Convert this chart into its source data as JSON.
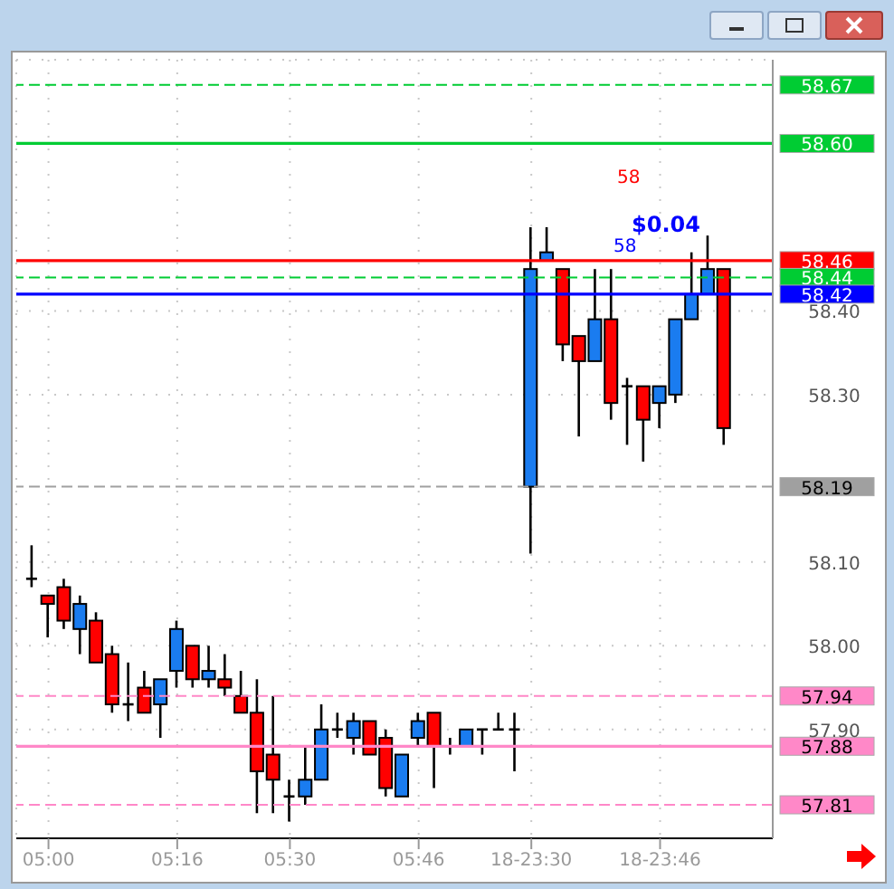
{
  "chart_data": {
    "type": "candlestick",
    "categories": [
      null,
      "05:00",
      null,
      null,
      null,
      null,
      null,
      null,
      null,
      "05:16",
      null,
      null,
      null,
      null,
      null,
      null,
      "05:30",
      null,
      null,
      null,
      null,
      null,
      null,
      null,
      "05:46",
      null,
      null,
      null,
      null,
      null,
      null,
      "18-23:30",
      null,
      null,
      null,
      null,
      null,
      null,
      null,
      "18-23:46",
      null,
      null,
      null,
      null
    ],
    "ohlc": [
      [
        58.08,
        58.12,
        58.07,
        58.08
      ],
      [
        58.06,
        58.06,
        58.01,
        58.05
      ],
      [
        58.07,
        58.08,
        58.02,
        58.03
      ],
      [
        58.02,
        58.06,
        57.99,
        58.05
      ],
      [
        58.03,
        58.04,
        57.98,
        57.98
      ],
      [
        57.99,
        58.0,
        57.92,
        57.93
      ],
      [
        57.93,
        57.98,
        57.91,
        57.93
      ],
      [
        57.95,
        57.97,
        57.92,
        57.92
      ],
      [
        57.93,
        57.96,
        57.89,
        57.96
      ],
      [
        57.97,
        58.03,
        57.95,
        58.02
      ],
      [
        58.0,
        58.0,
        57.95,
        57.96
      ],
      [
        57.96,
        58.0,
        57.95,
        57.97
      ],
      [
        57.96,
        57.99,
        57.94,
        57.95
      ],
      [
        57.94,
        57.97,
        57.92,
        57.92
      ],
      [
        57.92,
        57.96,
        57.8,
        57.85
      ],
      [
        57.87,
        57.94,
        57.8,
        57.84
      ],
      [
        57.82,
        57.84,
        57.79,
        57.82
      ],
      [
        57.82,
        57.88,
        57.81,
        57.84
      ],
      [
        57.84,
        57.93,
        57.84,
        57.9
      ],
      [
        57.9,
        57.92,
        57.89,
        57.9
      ],
      [
        57.89,
        57.92,
        57.87,
        57.91
      ],
      [
        57.91,
        57.91,
        57.87,
        57.87
      ],
      [
        57.89,
        57.9,
        57.82,
        57.83
      ],
      [
        57.82,
        57.87,
        57.82,
        57.87
      ],
      [
        57.89,
        57.92,
        57.88,
        57.91
      ],
      [
        57.92,
        57.92,
        57.83,
        57.88
      ],
      [
        57.88,
        57.89,
        57.87,
        57.88
      ],
      [
        57.88,
        57.9,
        57.88,
        57.9
      ],
      [
        57.9,
        57.9,
        57.87,
        57.9
      ],
      [
        57.9,
        57.92,
        57.9,
        57.9
      ],
      [
        57.9,
        57.92,
        57.85,
        57.9
      ],
      [
        58.19,
        58.5,
        58.11,
        58.45
      ],
      [
        58.46,
        58.5,
        58.46,
        58.47
      ],
      [
        58.45,
        58.45,
        58.34,
        58.36
      ],
      [
        58.37,
        58.37,
        58.25,
        58.34
      ],
      [
        58.34,
        58.45,
        58.34,
        58.39
      ],
      [
        58.39,
        58.45,
        58.27,
        58.29
      ],
      [
        58.31,
        58.32,
        58.24,
        58.31
      ],
      [
        58.31,
        58.31,
        58.22,
        58.27
      ],
      [
        58.29,
        58.31,
        58.26,
        58.31
      ],
      [
        58.3,
        58.39,
        58.29,
        58.39
      ],
      [
        58.39,
        58.47,
        58.39,
        58.42
      ],
      [
        58.42,
        58.49,
        58.42,
        58.45
      ],
      [
        58.45,
        58.45,
        58.24,
        58.26
      ]
    ],
    "colors": [
      "#000000",
      "#ff0000",
      "#ff0000",
      "#1a7cf0",
      "#ff0000",
      "#ff0000",
      "#000000",
      "#ff0000",
      "#1a7cf0",
      "#1a7cf0",
      "#ff0000",
      "#1a7cf0",
      "#ff0000",
      "#ff0000",
      "#ff0000",
      "#ff0000",
      "#000000",
      "#1a7cf0",
      "#1a7cf0",
      "#000000",
      "#1a7cf0",
      "#ff0000",
      "#ff0000",
      "#1a7cf0",
      "#1a7cf0",
      "#ff0000",
      "#000000",
      "#1a7cf0",
      "#000000",
      "#000000",
      "#000000",
      "#1a7cf0",
      "#1a7cf0",
      "#ff0000",
      "#ff0000",
      "#1a7cf0",
      "#ff0000",
      "#000000",
      "#ff0000",
      "#1a7cf0",
      "#1a7cf0",
      "#1a7cf0",
      "#1a7cf0",
      "#ff0000"
    ],
    "ylim": [
      57.77,
      58.7
    ],
    "yticks": [
      {
        "value": 57.9,
        "label": "57.90"
      },
      {
        "value": 58.0,
        "label": "58.00"
      },
      {
        "value": 58.1,
        "label": "58.10"
      },
      {
        "value": 58.3,
        "label": "58.30"
      },
      {
        "value": 58.4,
        "label": "58.40"
      }
    ],
    "grid": true,
    "ref_lines": [
      {
        "axis": "y",
        "value": 58.67,
        "label": "58.67",
        "color": "#00cc33",
        "line_style": "dashed"
      },
      {
        "axis": "y",
        "value": 58.6,
        "label": "58.60",
        "color": "#00cc33",
        "line_style": "solid"
      },
      {
        "axis": "y",
        "value": 58.46,
        "label": "58.46",
        "color": "#ff0000",
        "line_style": "solid"
      },
      {
        "axis": "y",
        "value": 58.44,
        "label": "58.44",
        "color": "#00cc33",
        "line_style": "dashed"
      },
      {
        "axis": "y",
        "value": 58.42,
        "label": "58.42",
        "color": "#0000ff",
        "line_style": "solid"
      },
      {
        "axis": "y",
        "value": 58.19,
        "label": "58.19",
        "color": "#a0a0a0",
        "line_style": "dashed"
      },
      {
        "axis": "y",
        "value": 57.94,
        "label": "57.94",
        "color": "#ff88c8",
        "line_style": "dashed"
      },
      {
        "axis": "y",
        "value": 57.88,
        "label": "57.88",
        "color": "#ff88c8",
        "line_style": "solid"
      },
      {
        "axis": "y",
        "value": 57.81,
        "label": "57.81",
        "color": "#ff88c8",
        "line_style": "dashed"
      }
    ],
    "annotations": [
      "58",
      "$0.04",
      "58"
    ]
  }
}
